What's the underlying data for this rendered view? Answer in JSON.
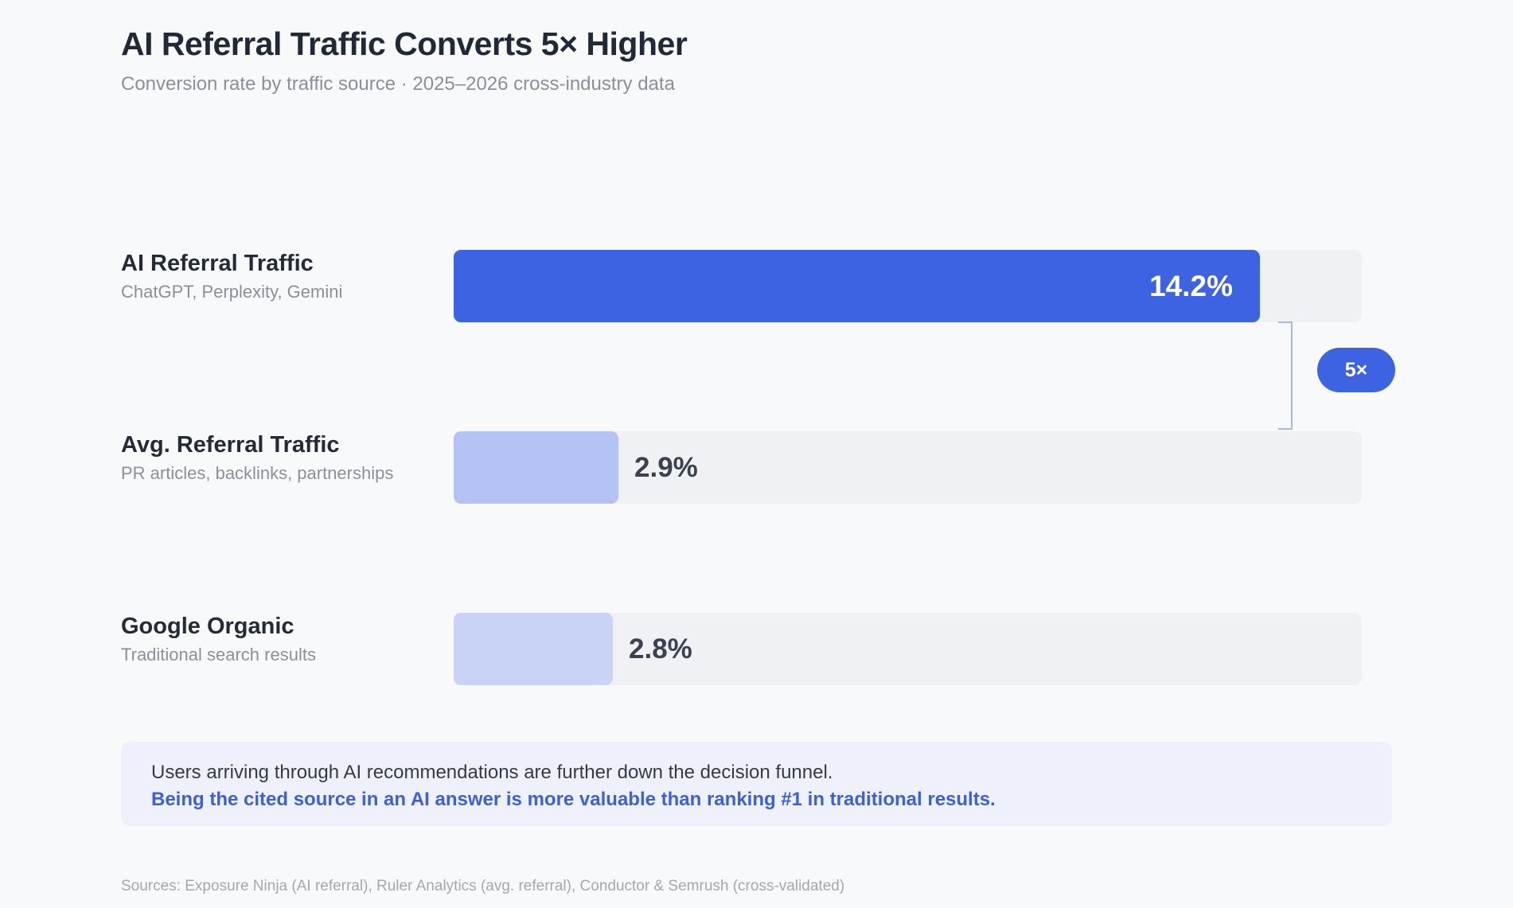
{
  "title": "AI Referral Traffic Converts 5× Higher",
  "subtitle": "Conversion rate by traffic source · 2025–2026 cross-industry data",
  "chart_data": {
    "type": "bar",
    "orientation": "horizontal",
    "xlim": [
      0,
      16
    ],
    "categories": [
      "AI Referral Traffic",
      "Avg. Referral Traffic",
      "Google Organic"
    ],
    "category_descriptions": [
      "ChatGPT, Perplexity, Gemini",
      "PR articles, backlinks, partnerships",
      "Traditional search results"
    ],
    "values": [
      14.2,
      2.9,
      2.8
    ],
    "value_labels": [
      "14.2%",
      "2.9%",
      "2.8%"
    ],
    "bar_colors": [
      "#3D63E2",
      "#B4C3F4",
      "#C8D3F6"
    ],
    "annotation": {
      "label": "5×",
      "between": [
        "AI Referral Traffic",
        "Avg. Referral Traffic"
      ]
    },
    "grid": false,
    "legend": "none"
  },
  "callout": {
    "line1": "Users arriving through AI recommendations are further down the decision funnel.",
    "line2": "Being the cited source in an AI answer is more valuable than ranking #1 in traditional results."
  },
  "sources": "Sources: Exposure Ninja (AI referral), Ruler Analytics (avg. referral), Conductor & Semrush (cross-validated)",
  "colors": {
    "accent": "#3D63E2",
    "track": "#F0F1F4",
    "background": "#F8F9FB",
    "callout_bg": "#EEF0FB"
  }
}
